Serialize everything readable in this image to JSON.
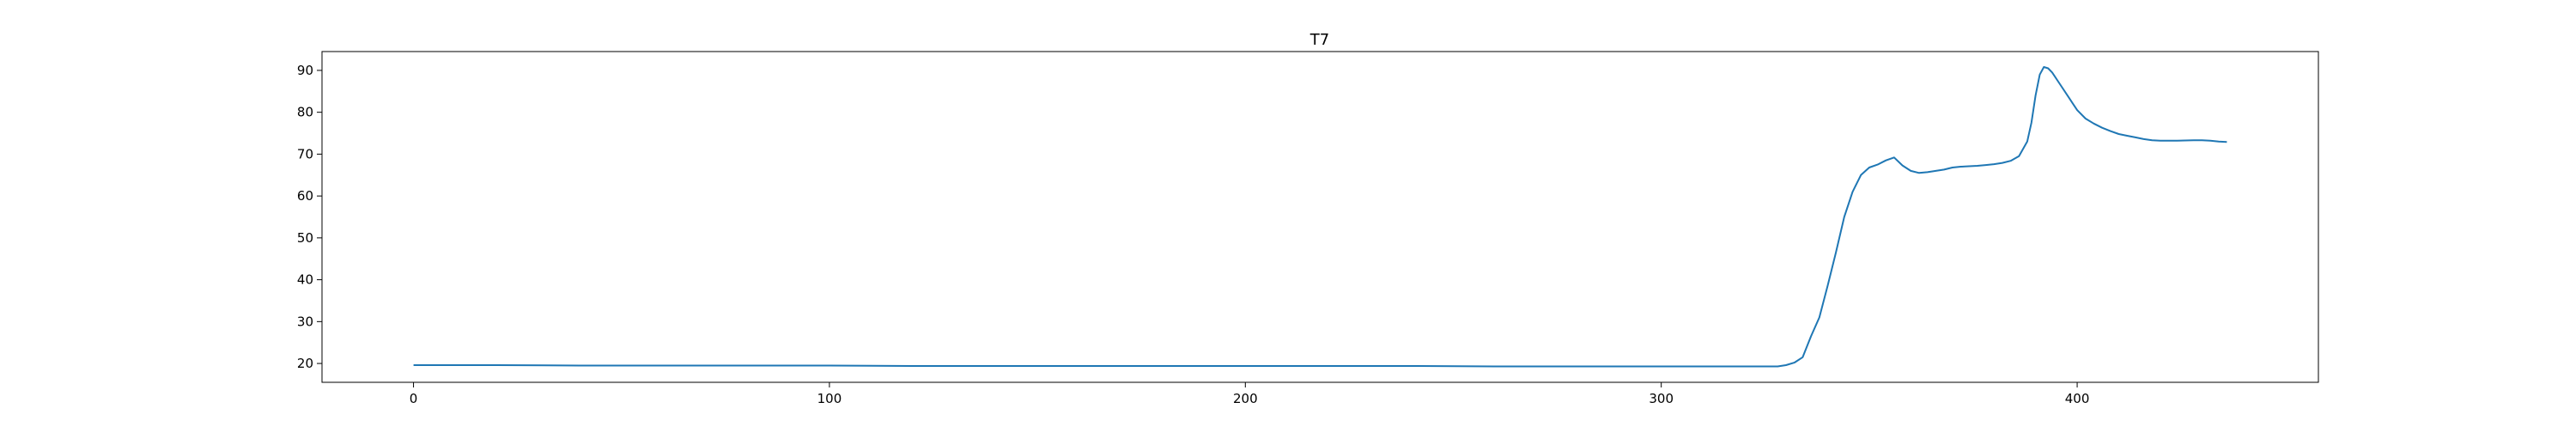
{
  "chart_data": {
    "type": "line",
    "title": "T7",
    "xlabel": "",
    "ylabel": "",
    "xlim": [
      -22,
      458
    ],
    "ylim": [
      15.5,
      94.5
    ],
    "xticks": [
      0,
      100,
      200,
      300,
      400
    ],
    "yticks": [
      20,
      30,
      40,
      50,
      60,
      70,
      80,
      90
    ],
    "grid": false,
    "legend": "none",
    "series": [
      {
        "color": "#1f77b4",
        "x": [
          0,
          20,
          40,
          60,
          80,
          100,
          120,
          140,
          160,
          180,
          200,
          220,
          240,
          260,
          280,
          300,
          320,
          328,
          330,
          332,
          334,
          336,
          338,
          340,
          342,
          344,
          346,
          348,
          350,
          352,
          354,
          356,
          358,
          360,
          362,
          364,
          366,
          368,
          370,
          372,
          374,
          376,
          378,
          380,
          382,
          384,
          386,
          388,
          389,
          390,
          391,
          392,
          393,
          394,
          396,
          398,
          400,
          402,
          404,
          406,
          408,
          410,
          412,
          414,
          416,
          418,
          420,
          424,
          428,
          430,
          432,
          434,
          436
        ],
        "y": [
          19.6,
          19.6,
          19.5,
          19.5,
          19.5,
          19.5,
          19.4,
          19.4,
          19.4,
          19.4,
          19.4,
          19.4,
          19.4,
          19.3,
          19.3,
          19.3,
          19.3,
          19.3,
          19.6,
          20.2,
          21.5,
          26.5,
          31.0,
          38.5,
          46.5,
          55.0,
          61.0,
          65.0,
          66.8,
          67.5,
          68.5,
          69.2,
          67.3,
          66.0,
          65.5,
          65.7,
          66.0,
          66.3,
          66.8,
          67.0,
          67.1,
          67.2,
          67.4,
          67.6,
          67.9,
          68.4,
          69.5,
          73.0,
          77.5,
          84.0,
          89.0,
          90.8,
          90.5,
          89.5,
          86.5,
          83.5,
          80.5,
          78.5,
          77.3,
          76.3,
          75.5,
          74.8,
          74.4,
          74.0,
          73.6,
          73.3,
          73.2,
          73.2,
          73.3,
          73.3,
          73.2,
          73.0,
          72.9
        ]
      }
    ]
  }
}
